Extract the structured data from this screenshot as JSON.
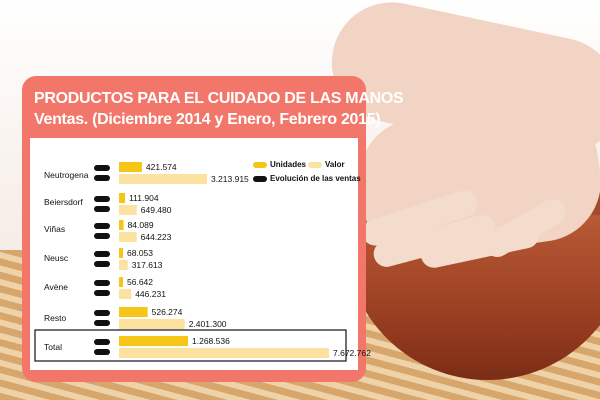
{
  "header": {
    "title_line1": "PRODUCTOS PARA EL CUIDADO DE LAS MANOS",
    "title_line2": "Ventas. (Diciembre 2014 y Enero, Febrero 2015)"
  },
  "colors": {
    "panel": "#f2776a",
    "unidades": "#f5c518",
    "valor": "#fbe2a1",
    "evolucion": "#111111"
  },
  "chart_data": {
    "type": "bar",
    "orientation": "horizontal",
    "categories": [
      "Neutrogena",
      "Beiersdorf",
      "Viñas",
      "Neusc",
      "Avène",
      "Resto",
      "Total"
    ],
    "series": [
      {
        "name": "Unidades",
        "values": [
          421.574,
          111.904,
          84.089,
          68.053,
          56.642,
          526.274,
          1268.536
        ],
        "labels": [
          "421.574",
          "111.904",
          "84.089",
          "68.053",
          "56.642",
          "526.274",
          "1.268.536"
        ]
      },
      {
        "name": "Valor",
        "values": [
          3213.915,
          649.48,
          644.223,
          317.613,
          446.231,
          2401.3,
          7672.762
        ],
        "labels": [
          "3.213.915",
          "649.480",
          "644.223",
          "317.613",
          "446.231",
          "2.401.300",
          "7.672.762"
        ]
      }
    ],
    "legend": [
      "Unidades",
      "Valor",
      "Evolución de las ventas"
    ],
    "legend_position": "top-right"
  }
}
